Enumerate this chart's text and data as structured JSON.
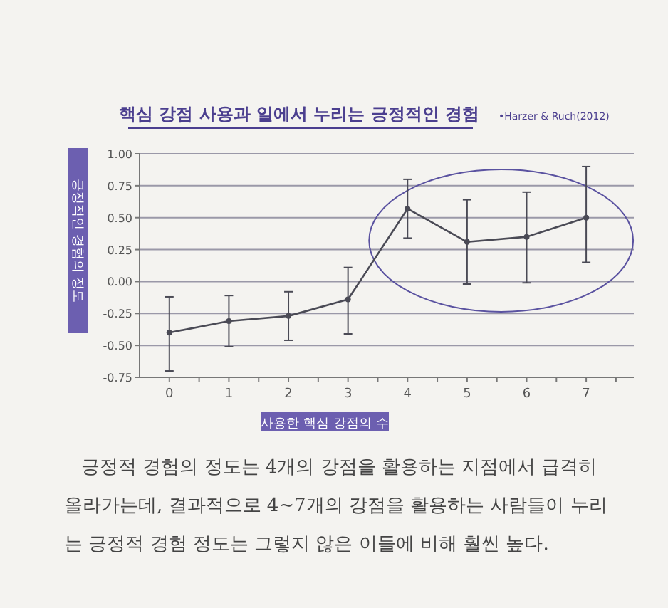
{
  "chart_data": {
    "type": "line",
    "title": "핵심 강점 사용과 일에서 누리는 긍정적인 경험",
    "xlabel": "사용한 핵심 강점의 수",
    "ylabel": "긍정적인 경험의 정도",
    "categories": [
      "0",
      "1",
      "2",
      "3",
      "4",
      "5",
      "6",
      "7"
    ],
    "series": [
      {
        "color": "#4a4a55",
        "values": [
          -0.4,
          -0.31,
          -0.27,
          -0.14,
          0.57,
          0.31,
          0.35,
          0.5
        ],
        "errors": [
          [
            -0.7,
            -0.12
          ],
          [
            -0.51,
            -0.11
          ],
          [
            -0.46,
            -0.08
          ],
          [
            -0.41,
            0.11
          ],
          [
            0.34,
            0.8
          ],
          [
            -0.02,
            0.64
          ],
          [
            -0.01,
            0.7
          ],
          [
            0.15,
            0.9
          ]
        ]
      }
    ],
    "ylim": [
      -0.75,
      1.0
    ],
    "yticks": [
      {
        "value": -0.75,
        "label": "-0.75"
      },
      {
        "value": -0.5,
        "label": "-0.50"
      },
      {
        "value": -0.25,
        "label": "-0.25"
      },
      {
        "value": 0,
        "label": "0.00"
      },
      {
        "value": 0.25,
        "label": "0.25"
      },
      {
        "value": 0.5,
        "label": "0.50"
      },
      {
        "value": 0.75,
        "label": "0.75"
      },
      {
        "value": 1.0,
        "label": "1.00"
      }
    ],
    "grid": "y",
    "marker": "circle",
    "line_style": "solid",
    "annotations": [
      "•Harzer & Ruch(2012)",
      "긍정적 경험의 정도는 4개의 강점을 활용하는 지점에서 급격히 올라가는데, 결과적으로 4~7개의 강점을 활용하는 사람들이 누리는 긍정적 경험 정도는 그렇지 않은 이들에 비해 훨씬 높다."
    ]
  }
}
